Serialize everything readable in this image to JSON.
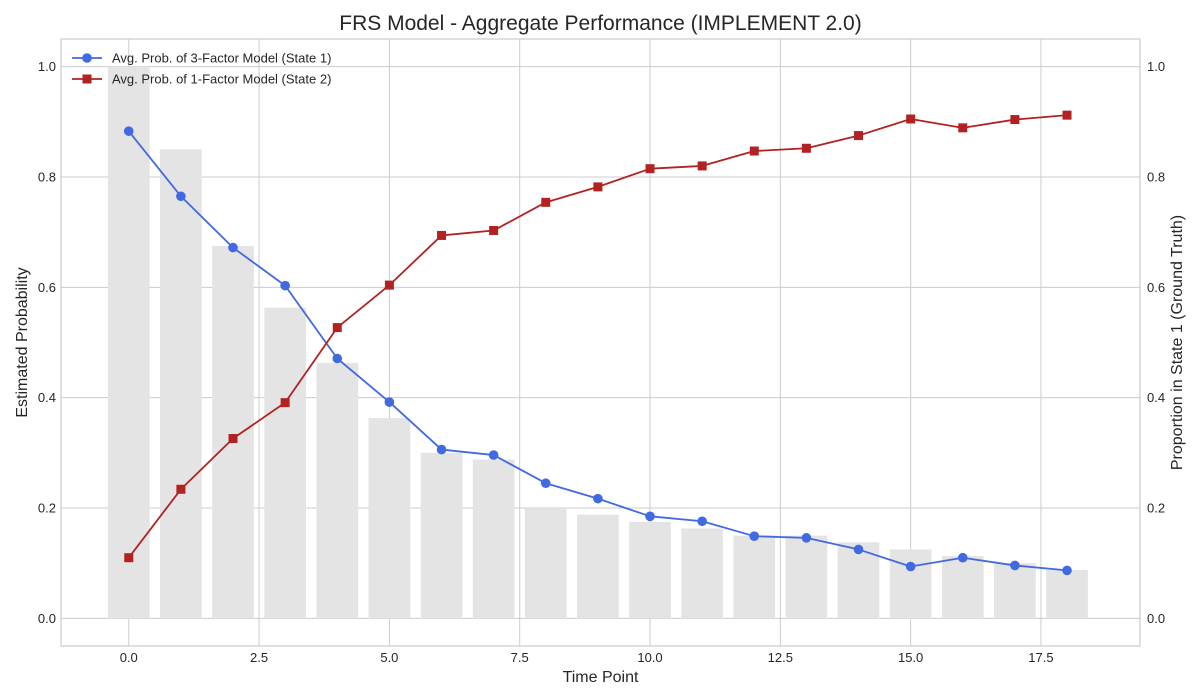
{
  "chart_data": {
    "type": "line",
    "title": "FRS Model - Aggregate Performance (IMPLEMENT 2.0)",
    "xlabel": "Time Point",
    "ylabel": "Estimated Probability",
    "y2label": "Proportion in State 1 (Ground Truth)",
    "xlim": [
      -1.3,
      19.4
    ],
    "ylim": [
      -0.05,
      1.05
    ],
    "y2lim": [
      -0.05,
      1.05
    ],
    "x_ticks": [
      "0.0",
      "2.5",
      "5.0",
      "7.5",
      "10.0",
      "12.5",
      "15.0",
      "17.5"
    ],
    "y_ticks": [
      "0.0",
      "0.2",
      "0.4",
      "0.6",
      "0.8",
      "1.0"
    ],
    "y2_ticks": [
      "0.0",
      "0.2",
      "0.4",
      "0.6",
      "0.8",
      "1.0"
    ],
    "grid": true,
    "legend_position": "top-left",
    "x": [
      0,
      1,
      2,
      3,
      4,
      5,
      6,
      7,
      8,
      9,
      10,
      11,
      12,
      13,
      14,
      15,
      16,
      17,
      18
    ],
    "series": [
      {
        "name": "Avg. Prob. of 3-Factor Model (State 1)",
        "axis": "left",
        "marker": "circle",
        "color": "#4169e1",
        "values": [
          0.883,
          0.765,
          0.672,
          0.603,
          0.471,
          0.392,
          0.306,
          0.296,
          0.245,
          0.217,
          0.185,
          0.176,
          0.149,
          0.146,
          0.125,
          0.094,
          0.11,
          0.096,
          0.087
        ]
      },
      {
        "name": "Avg. Prob. of 1-Factor Model (State 2)",
        "axis": "left",
        "marker": "square",
        "color": "#b22222",
        "values": [
          0.11,
          0.234,
          0.326,
          0.391,
          0.527,
          0.604,
          0.694,
          0.703,
          0.754,
          0.782,
          0.815,
          0.82,
          0.847,
          0.852,
          0.875,
          0.905,
          0.889,
          0.904,
          0.912
        ]
      },
      {
        "type": "bar",
        "axis": "right",
        "color": "#e4e4e4",
        "values": [
          1.0,
          0.85,
          0.675,
          0.563,
          0.463,
          0.363,
          0.3,
          0.288,
          0.2,
          0.188,
          0.175,
          0.163,
          0.15,
          0.15,
          0.138,
          0.125,
          0.113,
          0.1,
          0.088
        ]
      }
    ]
  }
}
